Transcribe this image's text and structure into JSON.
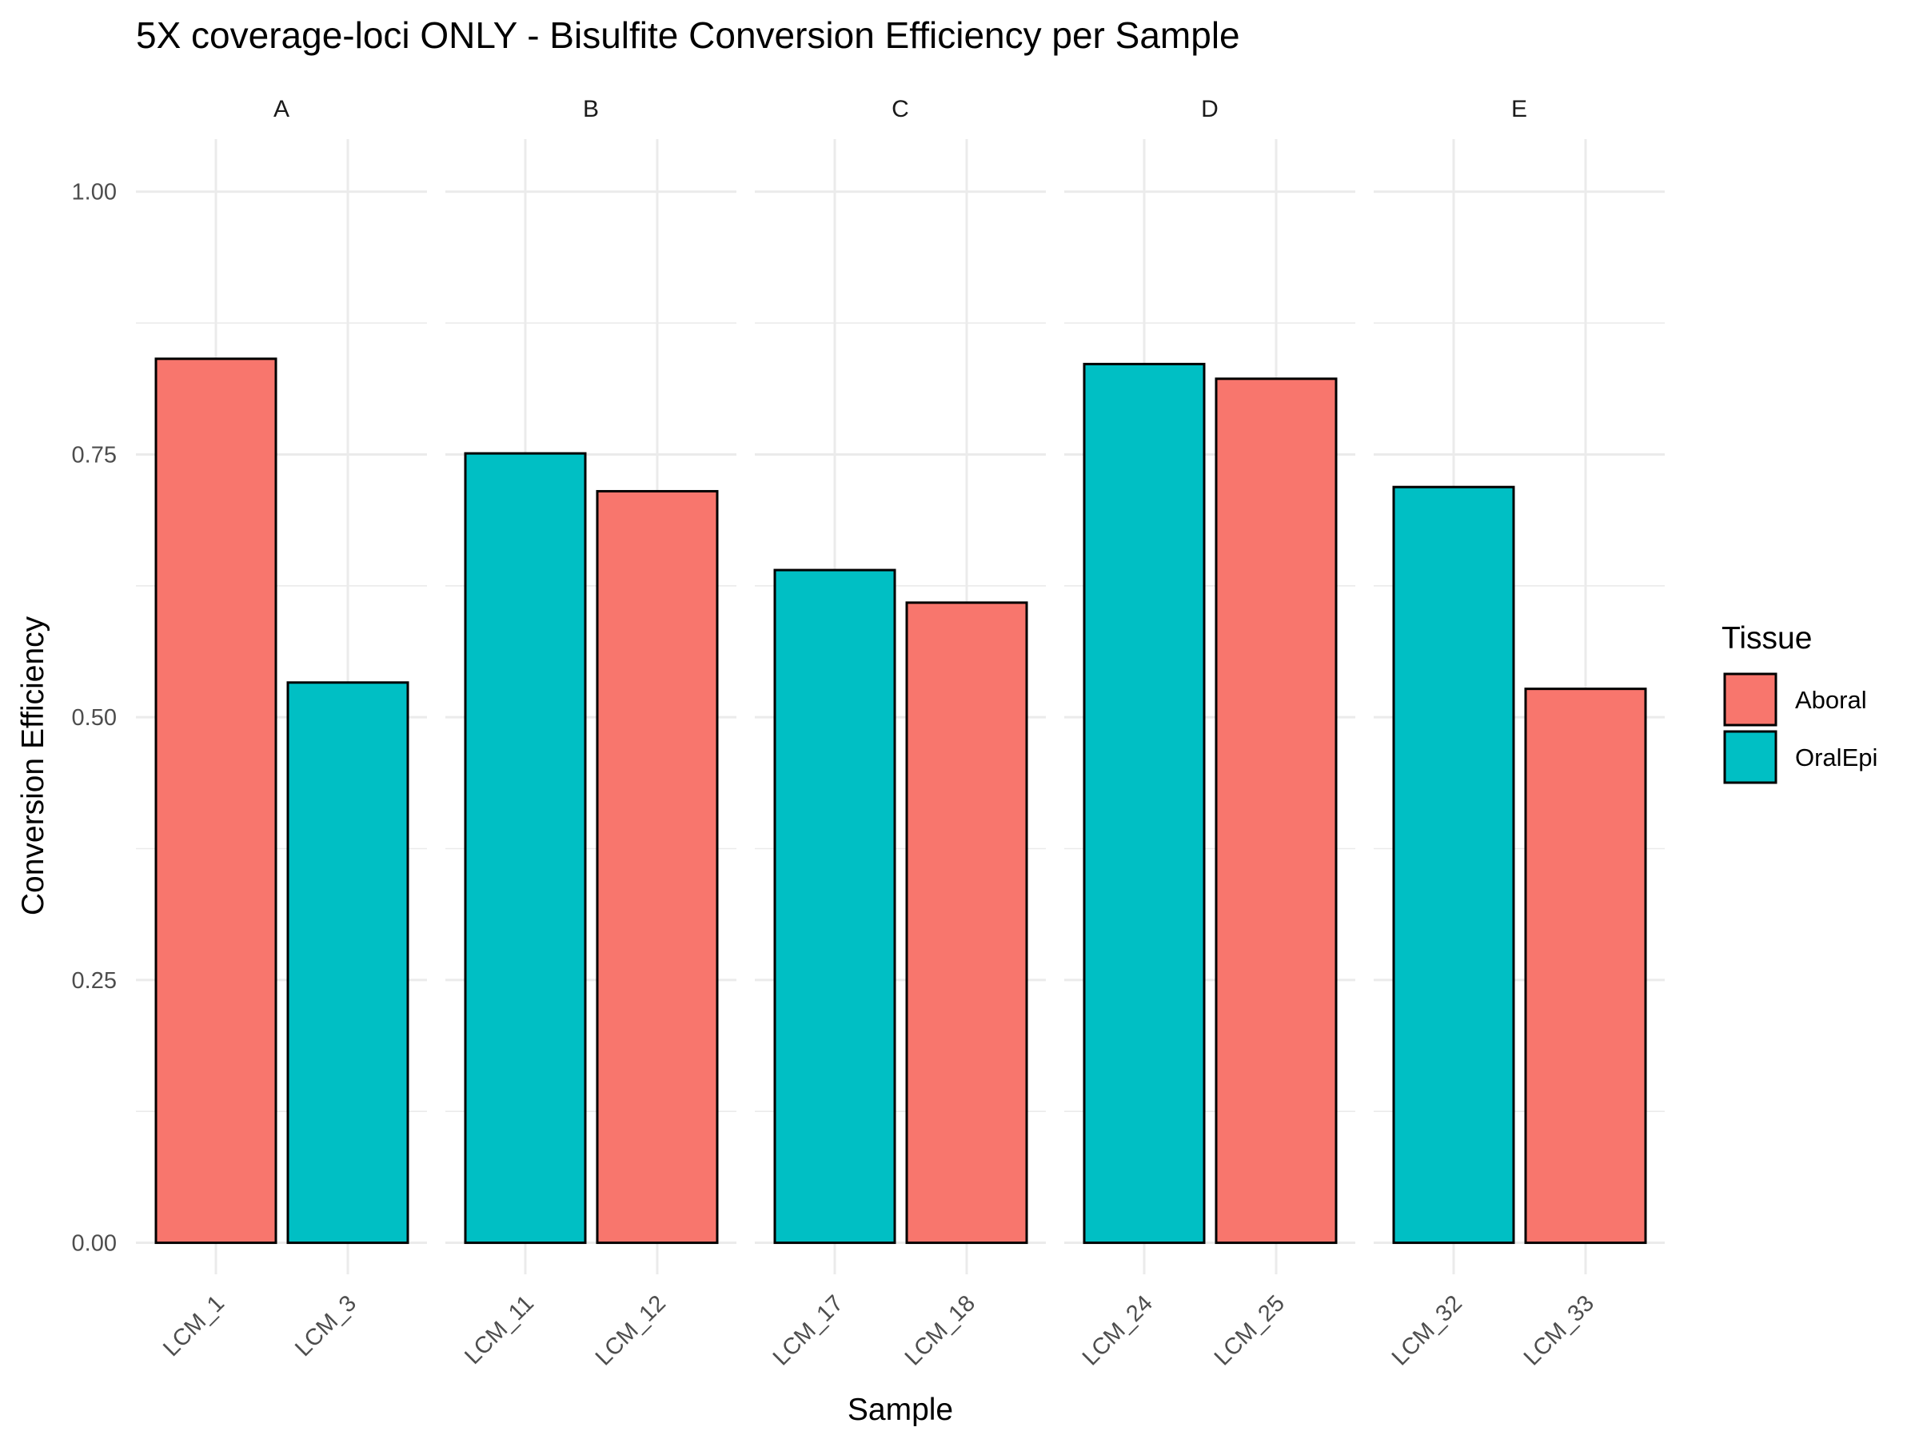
{
  "chart_data": {
    "type": "bar",
    "title": "5X coverage-loci ONLY - Bisulfite Conversion Efficiency per Sample",
    "xlabel": "Sample",
    "ylabel": "Conversion Efficiency",
    "ylim": [
      -0.03,
      1.05
    ],
    "y_ticks": [
      "0.00",
      "0.25",
      "0.50",
      "0.75",
      "1.00"
    ],
    "grid": true,
    "legend_position": "right",
    "legend": {
      "title": "Tissue",
      "entries": [
        {
          "name": "Aboral",
          "color": "#F8766D"
        },
        {
          "name": "OralEpi",
          "color": "#00BFC4"
        }
      ]
    },
    "facets": [
      {
        "label": "A",
        "bars": [
          {
            "sample": "LCM_1",
            "tissue": "Aboral",
            "value": 0.841
          },
          {
            "sample": "LCM_3",
            "tissue": "OralEpi",
            "value": 0.533
          }
        ]
      },
      {
        "label": "B",
        "bars": [
          {
            "sample": "LCM_11",
            "tissue": "OralEpi",
            "value": 0.751
          },
          {
            "sample": "LCM_12",
            "tissue": "Aboral",
            "value": 0.715
          }
        ]
      },
      {
        "label": "C",
        "bars": [
          {
            "sample": "LCM_17",
            "tissue": "OralEpi",
            "value": 0.64
          },
          {
            "sample": "LCM_18",
            "tissue": "Aboral",
            "value": 0.609
          }
        ]
      },
      {
        "label": "D",
        "bars": [
          {
            "sample": "LCM_24",
            "tissue": "OralEpi",
            "value": 0.836
          },
          {
            "sample": "LCM_25",
            "tissue": "Aboral",
            "value": 0.822
          }
        ]
      },
      {
        "label": "E",
        "bars": [
          {
            "sample": "LCM_32",
            "tissue": "OralEpi",
            "value": 0.719
          },
          {
            "sample": "LCM_33",
            "tissue": "Aboral",
            "value": 0.527
          }
        ]
      }
    ]
  }
}
